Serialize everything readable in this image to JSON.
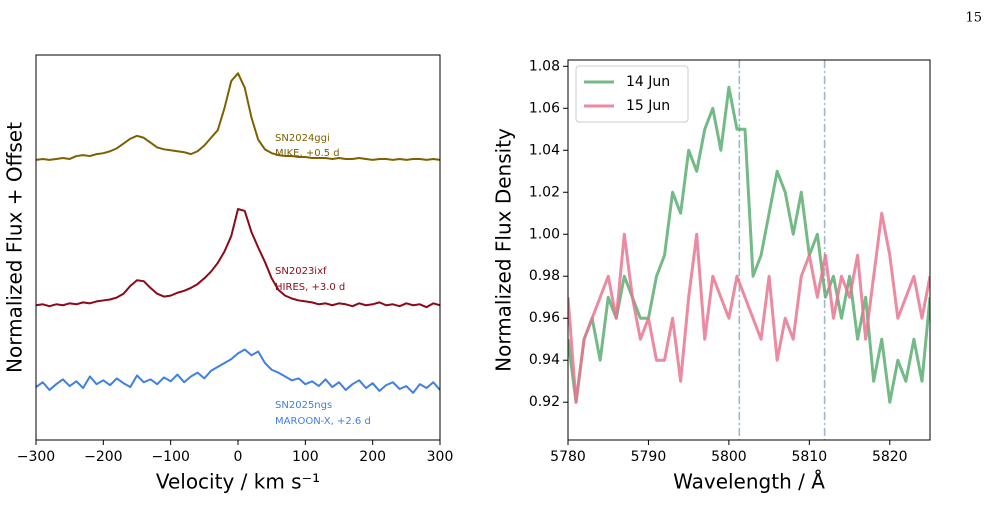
{
  "page_number": "15",
  "chart_data": [
    {
      "type": "line",
      "xlabel": "Velocity / km s⁻¹",
      "ylabel": "Normalized Flux + Offset",
      "xlim": [
        -300,
        300
      ],
      "xticks": [
        {
          "value": -300,
          "label": "−300"
        },
        {
          "value": -200,
          "label": "−200"
        },
        {
          "value": -100,
          "label": "−100"
        },
        0,
        100,
        200,
        300
      ],
      "ylim": [
        0,
        4
      ],
      "x": [
        -300,
        -290,
        -280,
        -270,
        -260,
        -250,
        -240,
        -230,
        -220,
        -210,
        -200,
        -190,
        -180,
        -170,
        -160,
        -150,
        -140,
        -130,
        -120,
        -110,
        -100,
        -90,
        -80,
        -70,
        -60,
        -50,
        -40,
        -30,
        -20,
        -10,
        0,
        10,
        20,
        30,
        40,
        50,
        60,
        70,
        80,
        90,
        100,
        110,
        120,
        130,
        140,
        150,
        160,
        170,
        180,
        190,
        200,
        210,
        220,
        230,
        240,
        250,
        260,
        270,
        280,
        290,
        300
      ],
      "series": [
        {
          "name": "SN2024ggi",
          "note": "MIKE, +0.5 d",
          "color": "#7f6000",
          "values": [
            2.91,
            2.92,
            2.91,
            2.92,
            2.93,
            2.92,
            2.95,
            2.96,
            2.95,
            2.97,
            2.98,
            3.0,
            3.03,
            3.08,
            3.13,
            3.16,
            3.14,
            3.09,
            3.04,
            3.02,
            3.01,
            3.0,
            2.99,
            2.97,
            3.0,
            3.06,
            3.14,
            3.22,
            3.45,
            3.73,
            3.81,
            3.66,
            3.35,
            3.12,
            3.02,
            2.98,
            2.96,
            2.95,
            2.95,
            2.94,
            2.94,
            2.93,
            2.93,
            2.93,
            2.92,
            2.93,
            2.92,
            2.92,
            2.93,
            2.92,
            2.91,
            2.92,
            2.92,
            2.91,
            2.92,
            2.91,
            2.92,
            2.92,
            2.91,
            2.92,
            2.91
          ]
        },
        {
          "name": "SN2023ixf",
          "note": "HIRES, +3.0 d",
          "color": "#8b0a1a",
          "values": [
            1.4,
            1.41,
            1.39,
            1.41,
            1.4,
            1.42,
            1.41,
            1.43,
            1.42,
            1.44,
            1.45,
            1.46,
            1.48,
            1.52,
            1.6,
            1.66,
            1.65,
            1.58,
            1.52,
            1.49,
            1.5,
            1.53,
            1.55,
            1.58,
            1.62,
            1.68,
            1.75,
            1.84,
            1.96,
            2.12,
            2.4,
            2.38,
            2.16,
            2.0,
            1.85,
            1.68,
            1.56,
            1.5,
            1.47,
            1.45,
            1.44,
            1.43,
            1.41,
            1.42,
            1.4,
            1.42,
            1.41,
            1.39,
            1.42,
            1.4,
            1.41,
            1.43,
            1.4,
            1.41,
            1.39,
            1.42,
            1.4,
            1.41,
            1.38,
            1.42,
            1.4
          ]
        },
        {
          "name": "SN2025ngs",
          "note": "MAROON-X, +2.6 d",
          "color": "#3f7fe6",
          "values": [
            0.55,
            0.6,
            0.52,
            0.58,
            0.63,
            0.56,
            0.61,
            0.54,
            0.66,
            0.58,
            0.62,
            0.57,
            0.64,
            0.59,
            0.55,
            0.67,
            0.6,
            0.63,
            0.58,
            0.65,
            0.61,
            0.68,
            0.6,
            0.66,
            0.7,
            0.64,
            0.72,
            0.76,
            0.8,
            0.84,
            0.9,
            0.94,
            0.88,
            0.92,
            0.8,
            0.73,
            0.7,
            0.66,
            0.62,
            0.64,
            0.58,
            0.61,
            0.56,
            0.63,
            0.55,
            0.6,
            0.52,
            0.58,
            0.62,
            0.54,
            0.59,
            0.51,
            0.57,
            0.6,
            0.53,
            0.56,
            0.49,
            0.58,
            0.54,
            0.6,
            0.52
          ]
        }
      ]
    },
    {
      "type": "line",
      "xlabel": "Wavelength / Å",
      "ylabel": "Normalized Flux Density",
      "xlim": [
        5780,
        5825
      ],
      "xticks": [
        5780,
        5790,
        5800,
        5810,
        5820
      ],
      "ylim": [
        0.902,
        1.083
      ],
      "yticks": [
        0.92,
        0.94,
        0.96,
        0.98,
        {
          "value": 1,
          "label": "1.00"
        },
        1.02,
        1.04,
        1.06,
        1.08
      ],
      "vlines": [
        5801.3,
        5811.9
      ],
      "legend": "upper left",
      "x": [
        5780,
        5781,
        5782,
        5783,
        5784,
        5785,
        5786,
        5787,
        5788,
        5789,
        5790,
        5791,
        5792,
        5793,
        5794,
        5795,
        5796,
        5797,
        5798,
        5799,
        5800,
        5801,
        5802,
        5803,
        5804,
        5805,
        5806,
        5807,
        5808,
        5809,
        5810,
        5811,
        5812,
        5813,
        5814,
        5815,
        5816,
        5817,
        5818,
        5819,
        5820,
        5821,
        5822,
        5823,
        5824,
        5825
      ],
      "series": [
        {
          "name": "14 Jun",
          "color": "#5aae72",
          "values": [
            0.95,
            0.92,
            0.95,
            0.96,
            0.94,
            0.97,
            0.96,
            0.98,
            0.97,
            0.96,
            0.96,
            0.98,
            0.99,
            1.02,
            1.01,
            1.04,
            1.03,
            1.05,
            1.06,
            1.04,
            1.07,
            1.05,
            1.05,
            0.98,
            0.99,
            1.01,
            1.03,
            1.02,
            1.0,
            1.02,
            0.99,
            1.0,
            0.97,
            0.98,
            0.96,
            0.98,
            0.95,
            0.97,
            0.93,
            0.95,
            0.92,
            0.94,
            0.93,
            0.95,
            0.93,
            0.97
          ]
        },
        {
          "name": "15 Jun",
          "color": "#e8768f",
          "values": [
            0.97,
            0.92,
            0.95,
            0.96,
            0.97,
            0.98,
            0.96,
            1.0,
            0.97,
            0.95,
            0.96,
            0.94,
            0.94,
            0.96,
            0.93,
            0.97,
            1.0,
            0.95,
            0.98,
            0.97,
            0.96,
            0.98,
            0.97,
            0.96,
            0.95,
            0.98,
            0.94,
            0.96,
            0.95,
            0.98,
            0.99,
            0.97,
            0.99,
            0.96,
            0.98,
            0.97,
            0.99,
            0.95,
            0.98,
            1.01,
            0.99,
            0.96,
            0.97,
            0.98,
            0.96,
            0.98
          ]
        }
      ]
    }
  ]
}
